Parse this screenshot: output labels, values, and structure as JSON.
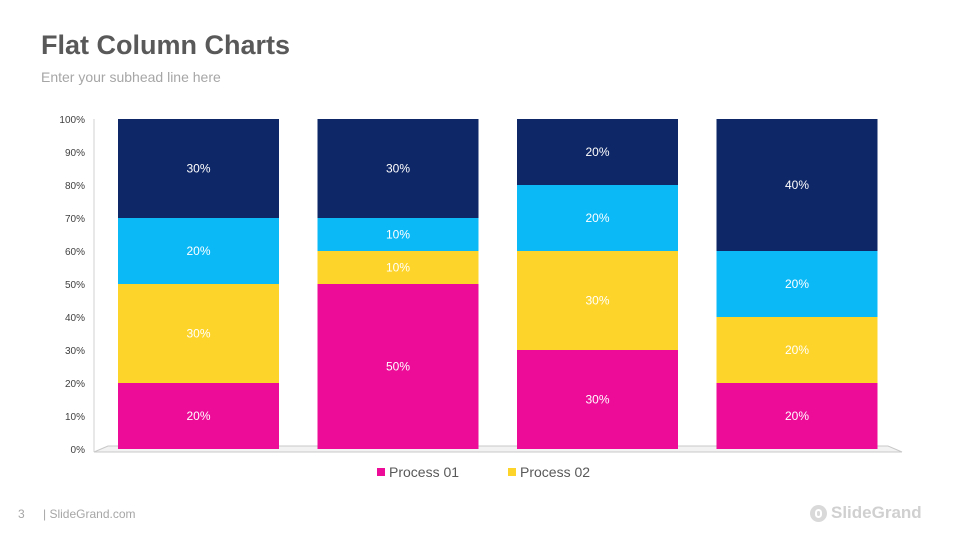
{
  "page": {
    "title": "Flat Column Charts",
    "subtitle": "Enter your subhead line here",
    "page_number": "3",
    "footer_site": "| SlideGrand.com",
    "logo_text": "SlideGrand"
  },
  "chart_data": {
    "type": "bar",
    "stacked": true,
    "categories": [
      "",
      "",
      "",
      ""
    ],
    "series": [
      {
        "name": "Process 01",
        "color": "#ec0c98",
        "values": [
          20,
          50,
          30,
          20
        ]
      },
      {
        "name": "Process 02",
        "color": "#fdd42a",
        "values": [
          30,
          10,
          30,
          20
        ]
      },
      {
        "color": "#0bb9f7",
        "values": [
          20,
          10,
          20,
          20
        ]
      },
      {
        "color": "#0e2766",
        "values": [
          30,
          30,
          20,
          40
        ]
      }
    ],
    "data_label_suffix": "%",
    "yticks": [
      "0%",
      "10%",
      "20%",
      "30%",
      "40%",
      "50%",
      "60%",
      "70%",
      "80%",
      "90%",
      "100%"
    ],
    "ylim": [
      0,
      100
    ],
    "legend": [
      "Process 01",
      "Process 02"
    ],
    "legend_position": "bottom",
    "grid": false
  }
}
